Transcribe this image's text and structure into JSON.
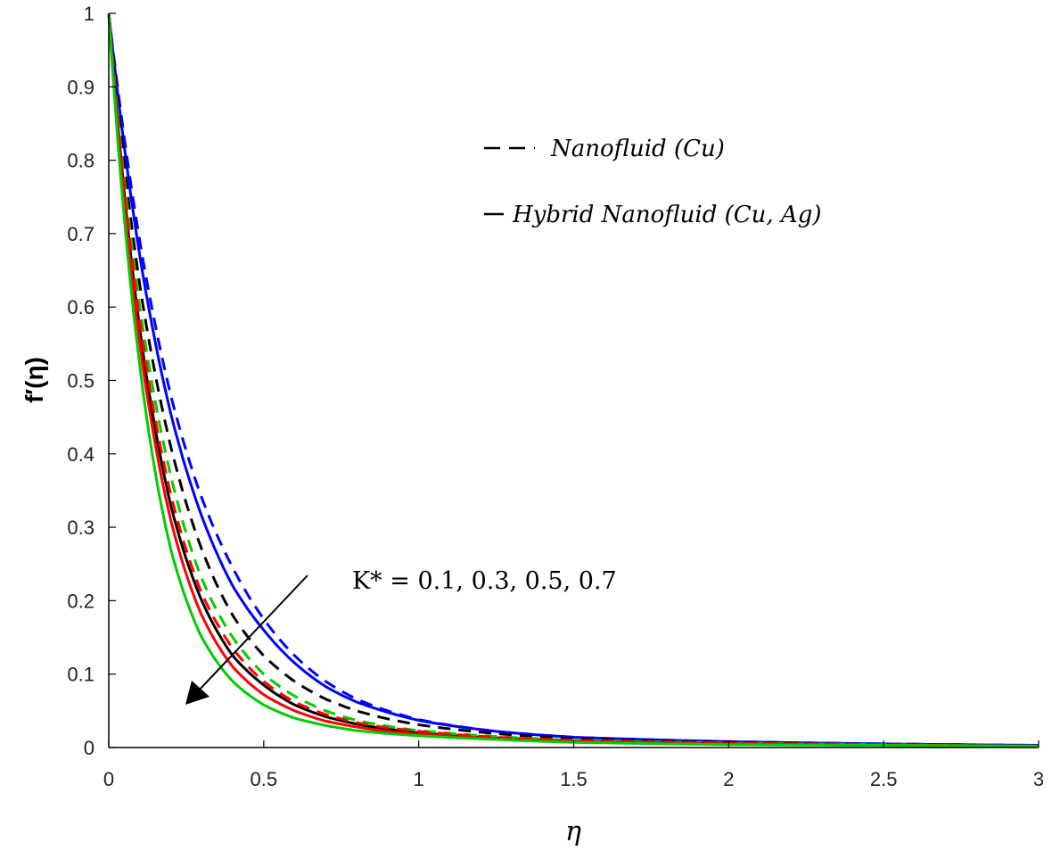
{
  "chart_data": {
    "type": "line",
    "xlabel": "η",
    "ylabel": "f′(η)",
    "xlim": [
      0,
      3
    ],
    "ylim": [
      0,
      1
    ],
    "xticks": [
      "0",
      "0.5",
      "1",
      "1.5",
      "2",
      "2.5",
      "3"
    ],
    "yticks": [
      "0",
      "0.1",
      "0.2",
      "0.3",
      "0.4",
      "0.5",
      "0.6",
      "0.7",
      "0.8",
      "0.9",
      "1"
    ],
    "grid": false,
    "legend": {
      "placement": "top-right",
      "entries": [
        {
          "style": "dashed",
          "label": "Nanofluid (Cu)"
        },
        {
          "style": "solid",
          "label": "Hybrid Nanofluid (Cu, Ag)"
        }
      ]
    },
    "annotation": {
      "text": "K* = 0.1, 0.3, 0.5, 0.7",
      "arrow_direction": "down-left"
    },
    "x": [
      0,
      0.1,
      0.2,
      0.3,
      0.4,
      0.5,
      0.6,
      0.7,
      0.8,
      0.9,
      1.0,
      1.25,
      1.5,
      2.0,
      2.5,
      3.0
    ],
    "series": [
      {
        "color": "#0000ff",
        "style": "dashed",
        "values": [
          1.0,
          0.69,
          0.48,
          0.34,
          0.245,
          0.175,
          0.125,
          0.09,
          0.066,
          0.05,
          0.038,
          0.022,
          0.014,
          0.008,
          0.005,
          0.003
        ]
      },
      {
        "color": "#0000ff",
        "style": "solid",
        "values": [
          1.0,
          0.67,
          0.455,
          0.315,
          0.22,
          0.16,
          0.115,
          0.083,
          0.062,
          0.048,
          0.037,
          0.022,
          0.014,
          0.008,
          0.005,
          0.003
        ]
      },
      {
        "color": "#000000",
        "style": "dashed",
        "values": [
          1.0,
          0.63,
          0.41,
          0.27,
          0.18,
          0.125,
          0.09,
          0.066,
          0.05,
          0.039,
          0.031,
          0.019,
          0.012,
          0.007,
          0.004,
          0.002
        ]
      },
      {
        "color": "#000000",
        "style": "solid",
        "values": [
          1.0,
          0.57,
          0.33,
          0.2,
          0.125,
          0.085,
          0.058,
          0.042,
          0.032,
          0.025,
          0.02,
          0.013,
          0.009,
          0.005,
          0.003,
          0.002
        ]
      },
      {
        "color": "#00cc00",
        "style": "dashed",
        "values": [
          1.0,
          0.6,
          0.37,
          0.23,
          0.15,
          0.1,
          0.07,
          0.05,
          0.037,
          0.029,
          0.023,
          0.015,
          0.01,
          0.006,
          0.004,
          0.002
        ]
      },
      {
        "color": "#ff0000",
        "style": "dashed",
        "values": [
          1.0,
          0.58,
          0.345,
          0.21,
          0.135,
          0.09,
          0.062,
          0.045,
          0.034,
          0.027,
          0.022,
          0.014,
          0.01,
          0.006,
          0.004,
          0.002
        ]
      },
      {
        "color": "#ff0000",
        "style": "solid",
        "values": [
          1.0,
          0.55,
          0.31,
          0.18,
          0.11,
          0.072,
          0.05,
          0.036,
          0.028,
          0.022,
          0.018,
          0.012,
          0.008,
          0.005,
          0.003,
          0.002
        ]
      },
      {
        "color": "#00cc00",
        "style": "solid",
        "values": [
          1.0,
          0.52,
          0.27,
          0.15,
          0.09,
          0.058,
          0.04,
          0.03,
          0.023,
          0.019,
          0.016,
          0.011,
          0.007,
          0.004,
          0.003,
          0.002
        ]
      }
    ]
  }
}
